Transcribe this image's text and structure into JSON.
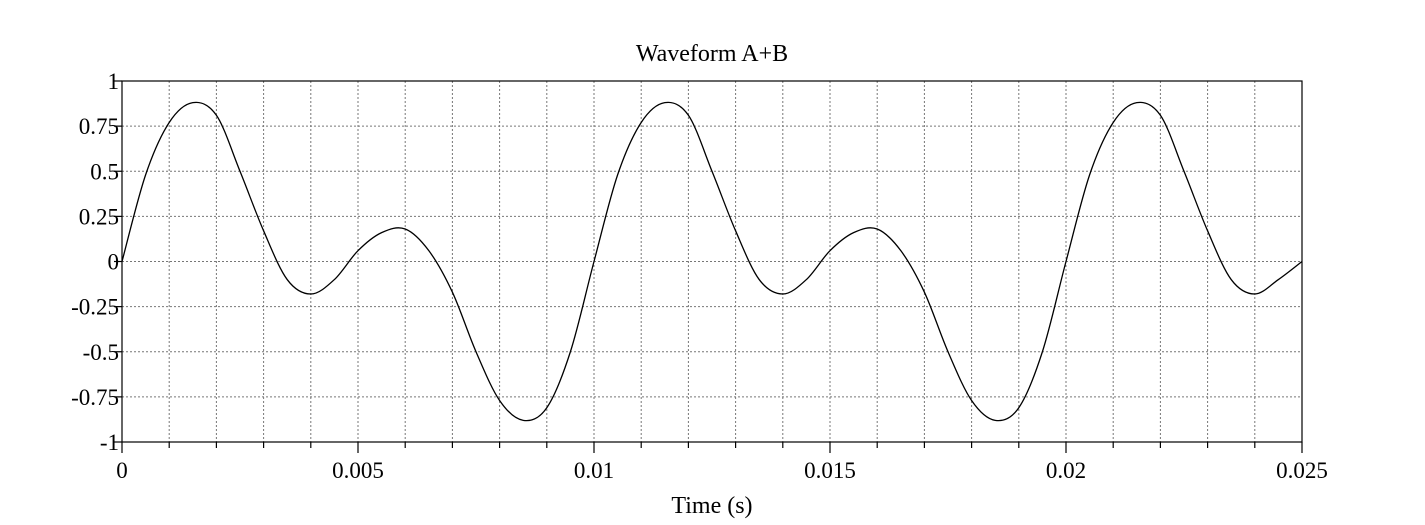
{
  "chart_data": {
    "type": "line",
    "title": "Waveform A+B",
    "xlabel": "Time (s)",
    "ylabel": "",
    "xlim": [
      0,
      0.025
    ],
    "ylim": [
      -1,
      1
    ],
    "grid": true,
    "legend": "none",
    "xticks": [
      {
        "value": 0,
        "label": "0"
      },
      {
        "value": 0.005,
        "label": "0.005"
      },
      {
        "value": 0.01,
        "label": "0.01"
      },
      {
        "value": 0.015,
        "label": "0.015"
      },
      {
        "value": 0.02,
        "label": "0.02"
      },
      {
        "value": 0.025,
        "label": "0.025"
      }
    ],
    "yticks": [
      {
        "value": 1,
        "label": "1"
      },
      {
        "value": 0.75,
        "label": "0.75"
      },
      {
        "value": 0.5,
        "label": "0.5"
      },
      {
        "value": 0.25,
        "label": "0.25"
      },
      {
        "value": 0,
        "label": "0"
      },
      {
        "value": -0.25,
        "label": "-0.25"
      },
      {
        "value": -0.5,
        "label": "-0.5"
      },
      {
        "value": -0.75,
        "label": "-0.75"
      },
      {
        "value": -1,
        "label": "-1"
      }
    ],
    "series": [
      {
        "color": "#000000",
        "x": [
          0,
          0.0005,
          0.001,
          0.0015,
          0.002,
          0.0025,
          0.003,
          0.0035,
          0.004,
          0.0045,
          0.005,
          0.0055,
          0.006,
          0.0065,
          0.007,
          0.0075,
          0.008,
          0.0085,
          0.009,
          0.0095,
          0.01,
          0.0105,
          0.011,
          0.0115,
          0.012,
          0.0125,
          0.013,
          0.0135,
          0.014,
          0.0145,
          0.015,
          0.0155,
          0.016,
          0.0165,
          0.017,
          0.0175,
          0.018,
          0.0185,
          0.019,
          0.0195,
          0.02,
          0.0205,
          0.021,
          0.0215,
          0.022,
          0.0225,
          0.023,
          0.0235,
          0.024,
          0.0245,
          0.025
        ],
        "y": [
          0,
          0.48,
          0.77,
          0.88,
          0.81,
          0.5,
          0.17,
          -0.1,
          -0.18,
          -0.1,
          0.06,
          0.16,
          0.18,
          0.06,
          -0.17,
          -0.5,
          -0.77,
          -0.88,
          -0.81,
          -0.5,
          0,
          0.48,
          0.77,
          0.88,
          0.81,
          0.5,
          0.17,
          -0.1,
          -0.18,
          -0.1,
          0.06,
          0.16,
          0.18,
          0.06,
          -0.17,
          -0.5,
          -0.77,
          -0.88,
          -0.81,
          -0.5,
          0,
          0.48,
          0.77,
          0.88,
          0.81,
          0.5,
          0.17,
          -0.1,
          -0.18,
          -0.1,
          0
        ]
      }
    ]
  }
}
